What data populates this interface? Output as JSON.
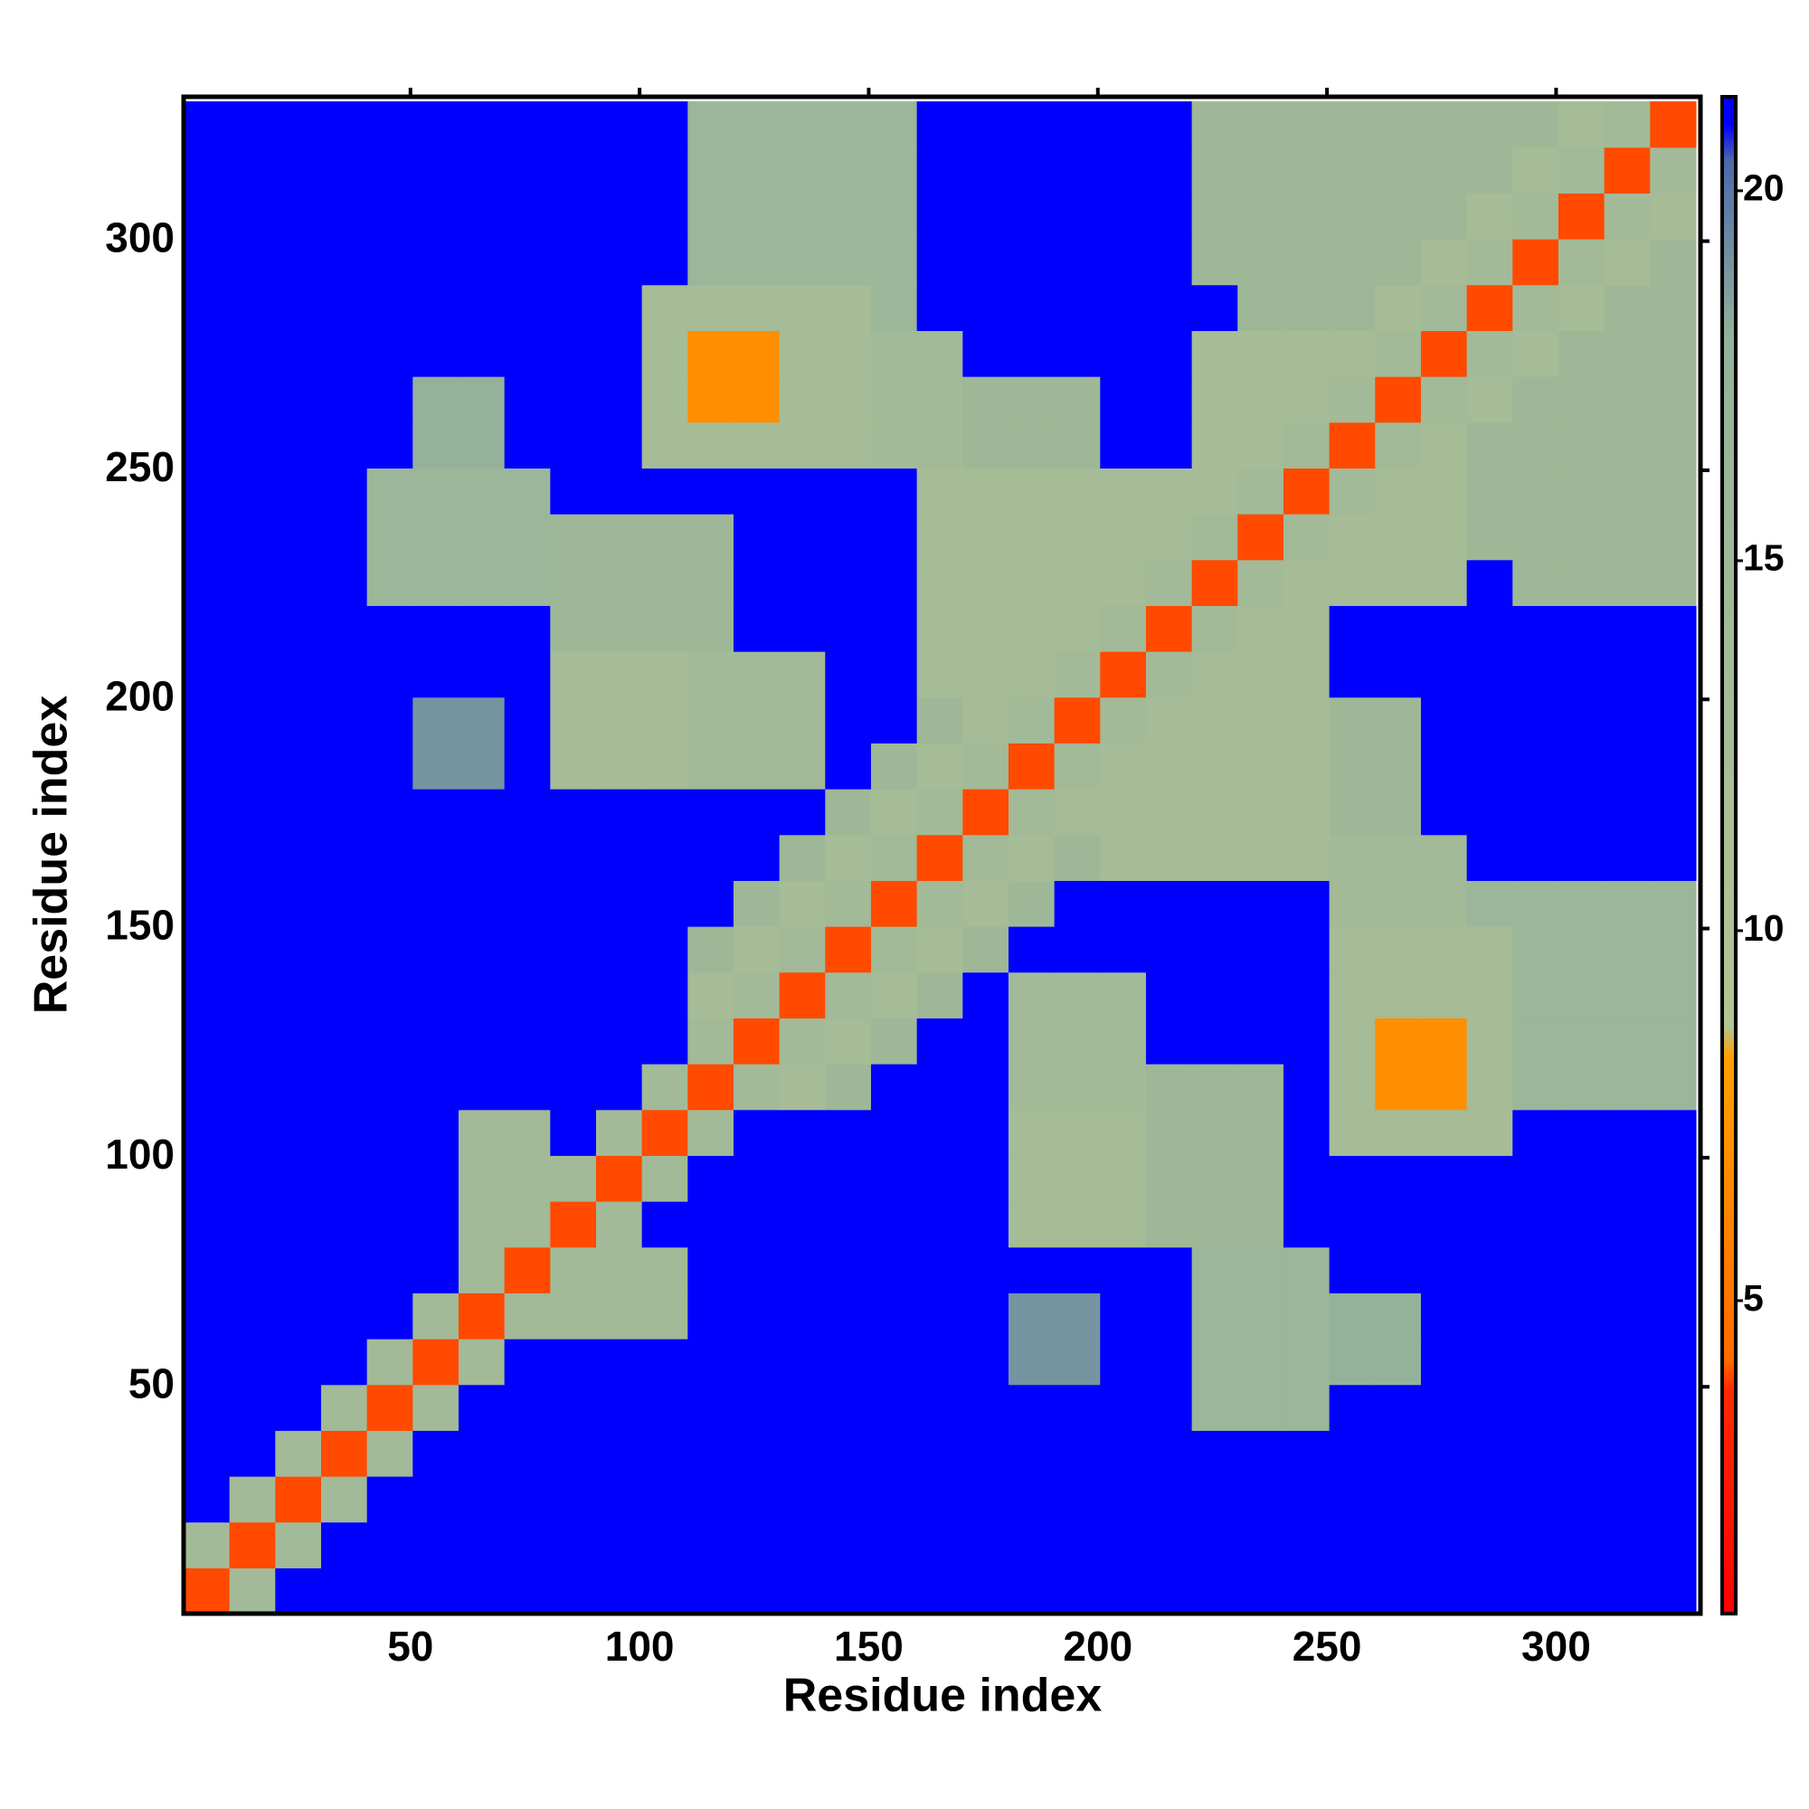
{
  "chart_data": {
    "type": "heatmap",
    "xlabel": "Residue index",
    "ylabel": "Residue index",
    "x": [
      5.5,
      15.5,
      25.5,
      35.5,
      45.5,
      55.5,
      65.5,
      75.5,
      85.5,
      95.5,
      105.5,
      115.5,
      125.5,
      135.5,
      145.5,
      155.5,
      165.5,
      175.5,
      185.5,
      195.5,
      205.5,
      215.5,
      225.5,
      235.5,
      245.5,
      255.5,
      265.5,
      275.5,
      285.5,
      295.5,
      305.5,
      315.5,
      325.5
    ],
    "y": [
      5.5,
      15.5,
      25.5,
      35.5,
      45.5,
      55.5,
      65.5,
      75.5,
      85.5,
      95.5,
      105.5,
      115.5,
      125.5,
      135.5,
      145.5,
      155.5,
      165.5,
      175.5,
      185.5,
      195.5,
      205.5,
      215.5,
      225.5,
      235.5,
      245.5,
      255.5,
      265.5,
      275.5,
      285.5,
      295.5,
      305.5,
      315.5,
      325.5
    ],
    "z": [
      [
        4,
        14,
        21,
        21,
        21,
        21,
        21,
        21,
        21,
        21,
        21,
        21,
        21,
        21,
        21,
        21,
        21,
        21,
        21,
        21,
        21,
        21,
        21,
        21,
        21,
        21,
        21,
        21,
        21,
        21,
        21,
        21,
        21
      ],
      [
        14,
        4,
        14,
        21,
        21,
        21,
        21,
        21,
        21,
        21,
        21,
        21,
        21,
        21,
        21,
        21,
        21,
        21,
        21,
        21,
        21,
        21,
        21,
        21,
        21,
        21,
        21,
        21,
        21,
        21,
        21,
        21,
        21
      ],
      [
        21,
        14,
        4,
        14,
        21,
        21,
        21,
        21,
        21,
        21,
        21,
        21,
        21,
        21,
        21,
        21,
        21,
        21,
        21,
        21,
        21,
        21,
        21,
        21,
        21,
        21,
        21,
        21,
        21,
        21,
        21,
        21,
        21
      ],
      [
        21,
        21,
        14,
        4,
        14,
        21,
        21,
        21,
        21,
        21,
        21,
        21,
        21,
        21,
        21,
        21,
        21,
        21,
        21,
        21,
        21,
        21,
        21,
        21,
        21,
        21,
        21,
        21,
        21,
        21,
        21,
        21,
        21
      ],
      [
        21,
        21,
        21,
        14,
        4,
        14,
        21,
        21,
        21,
        21,
        21,
        21,
        21,
        21,
        21,
        21,
        21,
        21,
        21,
        21,
        21,
        21,
        16,
        16,
        16,
        21,
        21,
        21,
        21,
        21,
        21,
        21,
        21
      ],
      [
        21,
        21,
        21,
        21,
        14,
        4,
        14,
        21,
        21,
        21,
        21,
        21,
        21,
        21,
        21,
        21,
        21,
        21,
        19,
        19,
        21,
        21,
        16,
        16,
        16,
        18,
        18,
        21,
        21,
        21,
        21,
        21,
        21
      ],
      [
        21,
        21,
        21,
        21,
        21,
        14,
        4,
        14,
        14,
        14,
        14,
        21,
        21,
        21,
        21,
        21,
        21,
        21,
        19,
        19,
        21,
        21,
        16,
        16,
        16,
        18,
        18,
        21,
        21,
        21,
        21,
        21,
        21
      ],
      [
        21,
        21,
        21,
        21,
        21,
        21,
        14,
        4,
        14,
        14,
        14,
        21,
        21,
        21,
        21,
        21,
        21,
        21,
        21,
        21,
        21,
        21,
        16,
        16,
        16,
        21,
        21,
        21,
        21,
        21,
        21,
        21,
        21
      ],
      [
        21,
        21,
        21,
        21,
        21,
        21,
        14,
        14,
        4,
        14,
        21,
        21,
        21,
        21,
        21,
        21,
        21,
        21,
        13,
        13,
        13,
        15,
        15,
        15,
        21,
        21,
        21,
        21,
        21,
        21,
        21,
        21,
        21
      ],
      [
        21,
        21,
        21,
        21,
        21,
        21,
        14,
        14,
        14,
        4,
        14,
        21,
        21,
        21,
        21,
        21,
        21,
        21,
        13,
        13,
        13,
        15,
        15,
        15,
        21,
        21,
        21,
        21,
        21,
        21,
        21,
        21,
        21
      ],
      [
        21,
        21,
        21,
        21,
        21,
        21,
        14,
        14,
        21,
        14,
        4,
        14,
        21,
        21,
        21,
        21,
        21,
        21,
        13,
        13,
        13,
        15,
        15,
        15,
        21,
        13,
        13,
        13,
        13,
        21,
        21,
        21,
        21
      ],
      [
        21,
        21,
        21,
        21,
        21,
        21,
        21,
        21,
        21,
        21,
        14,
        4,
        14,
        13,
        15,
        21,
        21,
        21,
        14,
        14,
        14,
        15,
        15,
        15,
        21,
        13,
        7,
        7,
        13,
        16,
        16,
        16,
        16
      ],
      [
        21,
        21,
        21,
        21,
        21,
        21,
        21,
        21,
        21,
        21,
        21,
        14,
        4,
        14,
        13,
        15,
        21,
        21,
        14,
        14,
        14,
        21,
        21,
        21,
        21,
        13,
        7,
        7,
        13,
        16,
        16,
        16,
        16
      ],
      [
        21,
        21,
        21,
        21,
        21,
        21,
        21,
        21,
        21,
        21,
        21,
        13,
        14,
        4,
        14,
        13,
        15,
        21,
        14,
        14,
        14,
        21,
        21,
        21,
        21,
        13,
        13,
        13,
        13,
        16,
        16,
        16,
        16
      ],
      [
        21,
        21,
        21,
        21,
        21,
        21,
        21,
        21,
        21,
        21,
        21,
        15,
        13,
        14,
        4,
        14,
        13,
        15,
        21,
        21,
        21,
        21,
        21,
        21,
        21,
        13,
        13,
        13,
        13,
        16,
        16,
        16,
        16
      ],
      [
        21,
        21,
        21,
        21,
        21,
        21,
        21,
        21,
        21,
        21,
        21,
        21,
        15,
        13,
        14,
        4,
        14,
        13,
        15,
        21,
        21,
        21,
        21,
        21,
        21,
        14,
        14,
        14,
        16,
        16,
        16,
        16,
        16
      ],
      [
        21,
        21,
        21,
        21,
        21,
        21,
        21,
        21,
        21,
        21,
        21,
        21,
        21,
        15,
        13,
        14,
        4,
        14,
        13,
        15,
        13,
        13,
        13,
        13,
        13,
        14,
        14,
        14,
        21,
        21,
        21,
        21,
        21
      ],
      [
        21,
        21,
        21,
        21,
        21,
        21,
        21,
        21,
        21,
        21,
        21,
        21,
        21,
        21,
        15,
        13,
        14,
        4,
        14,
        13,
        13,
        13,
        13,
        13,
        13,
        15,
        15,
        21,
        21,
        21,
        21,
        21,
        21
      ],
      [
        21,
        21,
        21,
        21,
        21,
        19,
        19,
        21,
        13,
        13,
        13,
        14,
        14,
        14,
        21,
        15,
        13,
        14,
        4,
        14,
        13,
        13,
        13,
        13,
        13,
        15,
        15,
        21,
        21,
        21,
        21,
        21,
        21
      ],
      [
        21,
        21,
        21,
        21,
        21,
        19,
        19,
        21,
        13,
        13,
        13,
        14,
        14,
        14,
        21,
        21,
        15,
        13,
        14,
        4,
        14,
        13,
        13,
        13,
        13,
        15,
        15,
        21,
        21,
        21,
        21,
        21,
        21
      ],
      [
        21,
        21,
        21,
        21,
        21,
        21,
        21,
        21,
        13,
        13,
        13,
        14,
        14,
        14,
        21,
        21,
        13,
        13,
        13,
        14,
        4,
        14,
        13,
        13,
        13,
        21,
        21,
        21,
        21,
        21,
        21,
        21,
        21
      ],
      [
        21,
        21,
        21,
        21,
        21,
        21,
        21,
        21,
        15,
        15,
        15,
        15,
        21,
        21,
        21,
        21,
        13,
        13,
        13,
        13,
        14,
        4,
        14,
        13,
        13,
        21,
        21,
        21,
        21,
        21,
        21,
        21,
        21
      ],
      [
        21,
        21,
        21,
        21,
        16,
        16,
        16,
        16,
        15,
        15,
        15,
        15,
        21,
        21,
        21,
        21,
        13,
        13,
        13,
        13,
        13,
        14,
        4,
        14,
        13,
        13,
        13,
        13,
        21,
        15,
        15,
        15,
        15
      ],
      [
        21,
        21,
        21,
        21,
        16,
        16,
        16,
        16,
        15,
        15,
        15,
        15,
        21,
        21,
        21,
        21,
        13,
        13,
        13,
        13,
        13,
        13,
        14,
        4,
        14,
        13,
        13,
        13,
        15,
        15,
        15,
        15,
        15
      ],
      [
        21,
        21,
        21,
        21,
        16,
        16,
        16,
        16,
        21,
        21,
        21,
        21,
        21,
        21,
        21,
        21,
        13,
        13,
        13,
        13,
        13,
        13,
        13,
        14,
        4,
        14,
        13,
        13,
        15,
        15,
        15,
        15,
        15
      ],
      [
        21,
        21,
        21,
        21,
        21,
        18,
        18,
        21,
        21,
        21,
        13,
        13,
        13,
        13,
        13,
        14,
        14,
        15,
        15,
        15,
        21,
        21,
        13,
        13,
        14,
        4,
        14,
        13,
        15,
        15,
        15,
        15,
        15
      ],
      [
        21,
        21,
        21,
        21,
        21,
        18,
        18,
        21,
        21,
        21,
        13,
        7,
        7,
        13,
        13,
        14,
        14,
        15,
        15,
        15,
        21,
        21,
        13,
        13,
        13,
        14,
        4,
        14,
        13,
        15,
        15,
        15,
        15
      ],
      [
        21,
        21,
        21,
        21,
        21,
        21,
        21,
        21,
        21,
        21,
        13,
        7,
        7,
        13,
        13,
        14,
        14,
        21,
        21,
        21,
        21,
        21,
        13,
        13,
        13,
        13,
        14,
        4,
        14,
        13,
        15,
        15,
        15
      ],
      [
        21,
        21,
        21,
        21,
        21,
        21,
        21,
        21,
        21,
        21,
        13,
        13,
        13,
        13,
        13,
        16,
        21,
        21,
        21,
        21,
        21,
        21,
        21,
        15,
        15,
        15,
        13,
        14,
        4,
        14,
        13,
        15,
        15
      ],
      [
        21,
        21,
        21,
        21,
        21,
        21,
        21,
        21,
        21,
        21,
        21,
        16,
        16,
        16,
        16,
        16,
        21,
        21,
        21,
        21,
        21,
        21,
        15,
        15,
        15,
        15,
        15,
        13,
        14,
        4,
        14,
        13,
        15
      ],
      [
        21,
        21,
        21,
        21,
        21,
        21,
        21,
        21,
        21,
        21,
        21,
        16,
        16,
        16,
        16,
        16,
        21,
        21,
        21,
        21,
        21,
        21,
        15,
        15,
        15,
        15,
        15,
        15,
        13,
        14,
        4,
        14,
        13
      ],
      [
        21,
        21,
        21,
        21,
        21,
        21,
        21,
        21,
        21,
        21,
        21,
        16,
        16,
        16,
        16,
        16,
        21,
        21,
        21,
        21,
        21,
        21,
        15,
        15,
        15,
        15,
        15,
        15,
        15,
        13,
        14,
        4,
        14
      ],
      [
        21,
        21,
        21,
        21,
        21,
        21,
        21,
        21,
        21,
        21,
        21,
        16,
        16,
        16,
        16,
        16,
        21,
        21,
        21,
        21,
        21,
        21,
        15,
        15,
        15,
        15,
        15,
        15,
        15,
        15,
        13,
        14,
        4
      ]
    ],
    "xlim": [
      0.5,
      331.5
    ],
    "ylim": [
      0.5,
      331.5
    ],
    "xticks": [
      50,
      100,
      150,
      200,
      250,
      300
    ],
    "yticks": [
      50,
      100,
      150,
      200,
      250,
      300
    ],
    "zlim": [
      0.77,
      21.27
    ],
    "zticks": [
      5,
      10,
      15,
      20
    ],
    "colorscale": [
      [
        0.77,
        "#ff0000"
      ],
      [
        3.8,
        "#ff2a00"
      ],
      [
        4.2,
        "#ff6a00"
      ],
      [
        8.3,
        "#ffa000"
      ],
      [
        8.7,
        "#b4c492"
      ],
      [
        18,
        "#94b29a"
      ],
      [
        20.4,
        "#4c6aa8"
      ],
      [
        20.9,
        "#0000ff"
      ],
      [
        21.27,
        "#0000ff"
      ]
    ]
  }
}
